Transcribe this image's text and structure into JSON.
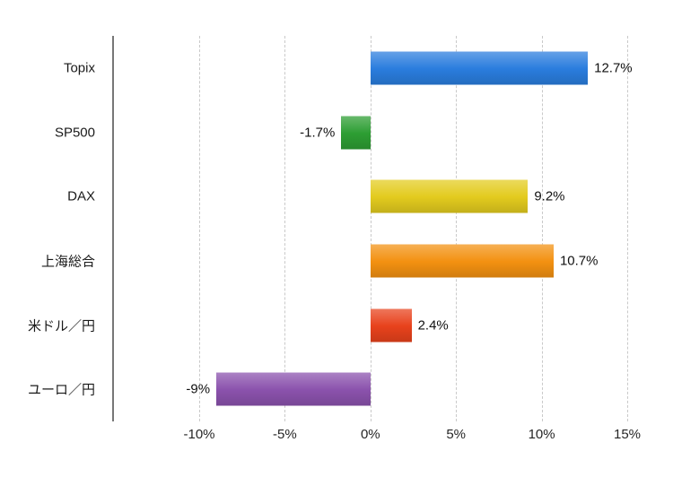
{
  "chart_data": {
    "type": "bar",
    "orientation": "horizontal",
    "title": "",
    "xlabel": "",
    "ylabel": "",
    "categories": [
      "Topix",
      "SP500",
      "DAX",
      "上海総合",
      "米ドル／円",
      "ユーロ／円"
    ],
    "values": [
      12.7,
      -1.7,
      9.2,
      10.7,
      2.4,
      -9
    ],
    "value_labels": [
      "12.7%",
      "-1.7%",
      "9.2%",
      "10.7%",
      "2.4%",
      "-9%"
    ],
    "bar_colors": [
      "#2a7dde",
      "#2d9e33",
      "#e3cb1e",
      "#f39111",
      "#e8421c",
      "#8b52ad"
    ],
    "xlim": [
      -10,
      15
    ],
    "xticks": [
      -10,
      -5,
      0,
      5,
      10,
      15
    ],
    "xtick_labels": [
      "-10%",
      "-5%",
      "0%",
      "5%",
      "10%",
      "15%"
    ],
    "grid": "vertical-dashed",
    "legend": "none"
  },
  "colors": {
    "background": "#ffffff",
    "axis_line": "#777777",
    "gridline": "#c9c9c9",
    "text": "#1a1a1a"
  }
}
